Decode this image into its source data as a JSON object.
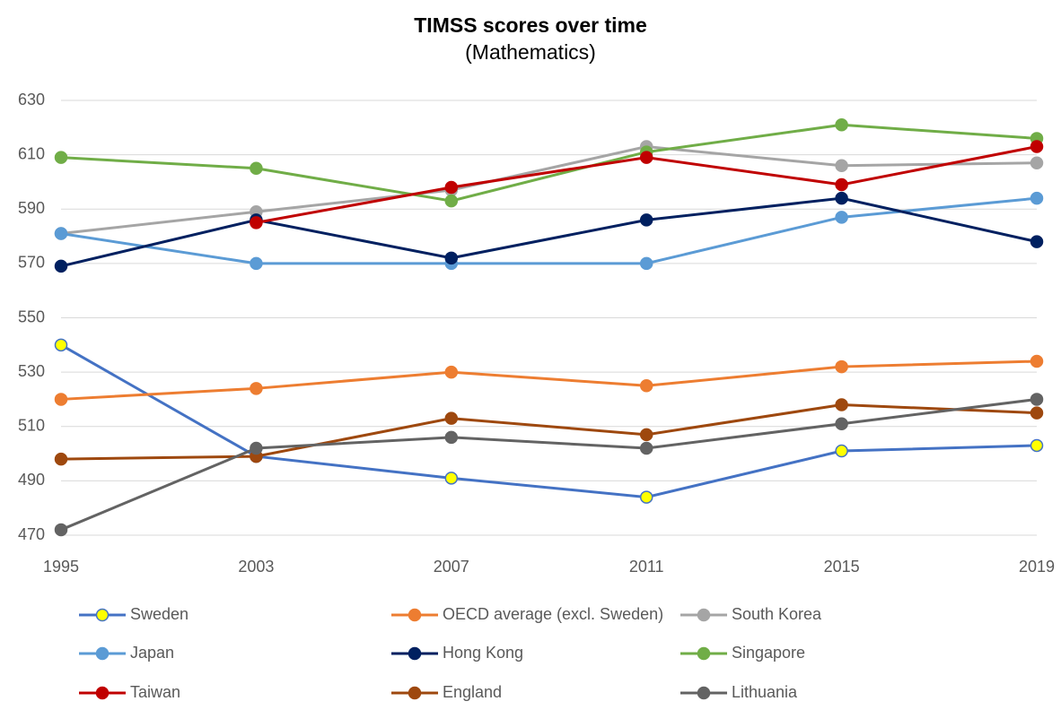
{
  "chart_data": {
    "type": "line",
    "title": "TIMSS scores over time",
    "subtitle": "(Mathematics)",
    "categories": [
      "1995",
      "2003",
      "2007",
      "2011",
      "2015",
      "2019"
    ],
    "ylim": [
      470,
      630
    ],
    "yticks": [
      470,
      490,
      510,
      530,
      550,
      570,
      590,
      610,
      630
    ],
    "grid": true,
    "legend": "bottom",
    "series": [
      {
        "name": "Sweden",
        "color": "#4472c4",
        "marker_fill": "#ffff00",
        "values": [
          540,
          499,
          491,
          484,
          501,
          503
        ]
      },
      {
        "name": "OECD average (excl. Sweden)",
        "color": "#ed7d31",
        "values": [
          520,
          524,
          530,
          525,
          532,
          534
        ]
      },
      {
        "name": "South Korea",
        "color": "#a5a5a5",
        "values": [
          581,
          589,
          597,
          613,
          606,
          607
        ]
      },
      {
        "name": "Japan",
        "color": "#5b9bd5",
        "values": [
          581,
          570,
          570,
          570,
          587,
          594
        ]
      },
      {
        "name": "Hong Kong",
        "color": "#002060",
        "values": [
          569,
          586,
          572,
          586,
          594,
          578
        ]
      },
      {
        "name": "Singapore",
        "color": "#70ad47",
        "values": [
          609,
          605,
          593,
          611,
          621,
          616
        ]
      },
      {
        "name": "Taiwan",
        "color": "#c00000",
        "values": [
          null,
          585,
          598,
          609,
          599,
          613
        ]
      },
      {
        "name": "England",
        "color": "#9e480e",
        "values": [
          498,
          499,
          513,
          507,
          518,
          515
        ]
      },
      {
        "name": "Lithuania",
        "color": "#636363",
        "values": [
          472,
          502,
          506,
          502,
          511,
          520
        ]
      }
    ]
  }
}
